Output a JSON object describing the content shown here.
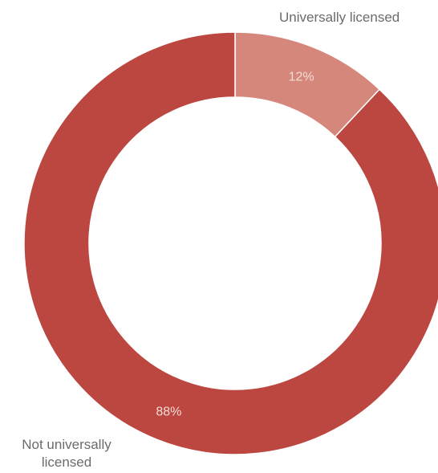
{
  "chart_data": {
    "type": "pie",
    "categories": [
      "Universally licensed",
      "Not universally licensed"
    ],
    "values": [
      12,
      88
    ],
    "value_labels": [
      "12%",
      "88%"
    ],
    "colors": [
      "#d4877a",
      "#bc4640"
    ],
    "donut": true,
    "start_angle": "12 o'clock",
    "direction": "clockwise",
    "title": "",
    "legend": "none"
  }
}
